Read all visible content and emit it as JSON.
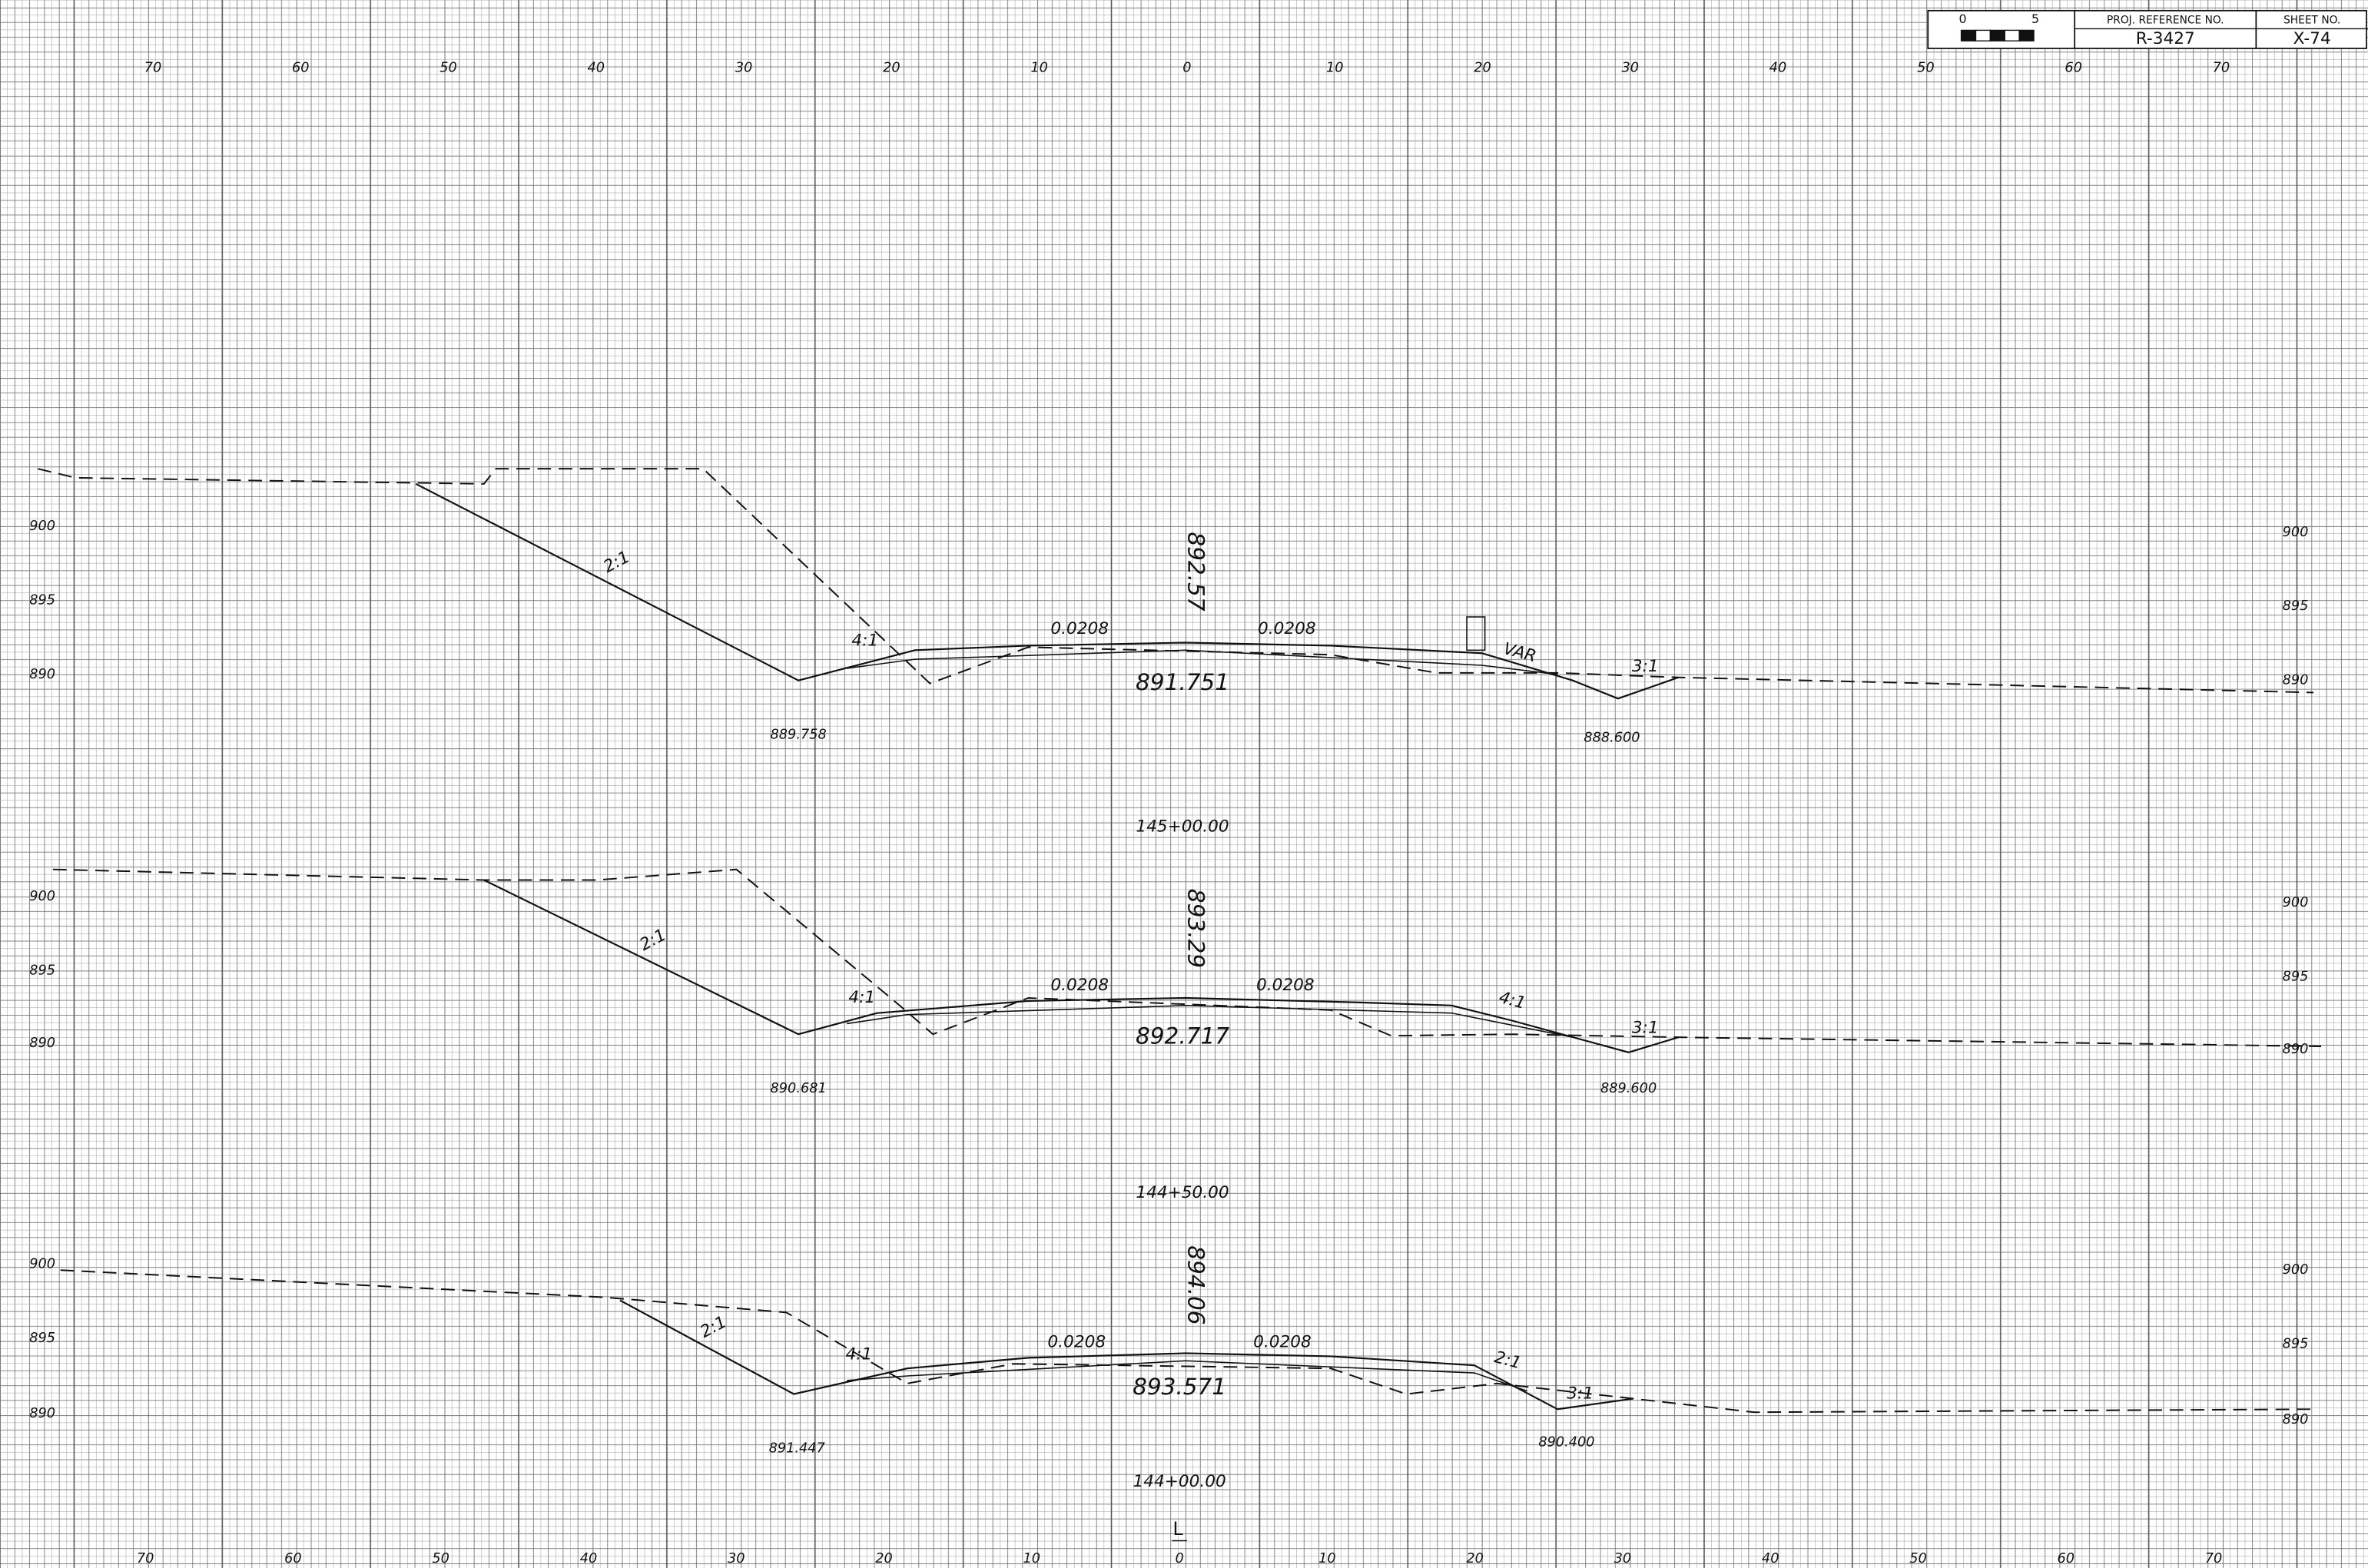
{
  "title_block": {
    "scale_start": "0",
    "scale_end": "5",
    "proj_ref_label": "PROJ. REFERENCE NO.",
    "proj_ref": "R-3427",
    "sheet_label": "SHEET NO.",
    "sheet": "X-74"
  },
  "top_axis": [
    "70",
    "60",
    "50",
    "40",
    "30",
    "20",
    "10",
    "0",
    "10",
    "20",
    "30",
    "40",
    "50",
    "60",
    "70"
  ],
  "bottom_axis": [
    "70",
    "60",
    "50",
    "40",
    "30",
    "20",
    "10",
    "0",
    "10",
    "20",
    "30",
    "40",
    "50",
    "60",
    "70"
  ],
  "centerline_label": "L",
  "sections": [
    {
      "station": "145+00.00",
      "existing_elevation": "892.57",
      "grade_elevation": "891.751",
      "left_ditch": "889.758",
      "right_ditch": "888.600",
      "left_elevations": [
        "900",
        "895",
        "890"
      ],
      "right_elevations": [
        "900",
        "895",
        "890"
      ],
      "slope_labels": [
        "2:1",
        "4:1",
        "0.0208",
        "0.0208",
        "VAR",
        "3:1"
      ]
    },
    {
      "station": "144+50.00",
      "existing_elevation": "893.29",
      "grade_elevation": "892.717",
      "left_ditch": "890.681",
      "right_ditch": "889.600",
      "left_elevations": [
        "900",
        "895",
        "890"
      ],
      "right_elevations": [
        "900",
        "895",
        "890"
      ],
      "slope_labels": [
        "2:1",
        "4:1",
        "0.0208",
        "0.0208",
        "4:1",
        "3:1"
      ]
    },
    {
      "station": "144+00.00",
      "existing_elevation": "894.06",
      "grade_elevation": "893.571",
      "left_ditch": "891.447",
      "right_ditch": "890.400",
      "left_elevations": [
        "900",
        "895",
        "890"
      ],
      "right_elevations": [
        "900",
        "895",
        "890"
      ],
      "slope_labels": [
        "2:1",
        "4:1",
        "0.0208",
        "0.0208",
        "2:1",
        "3:1"
      ]
    }
  ]
}
